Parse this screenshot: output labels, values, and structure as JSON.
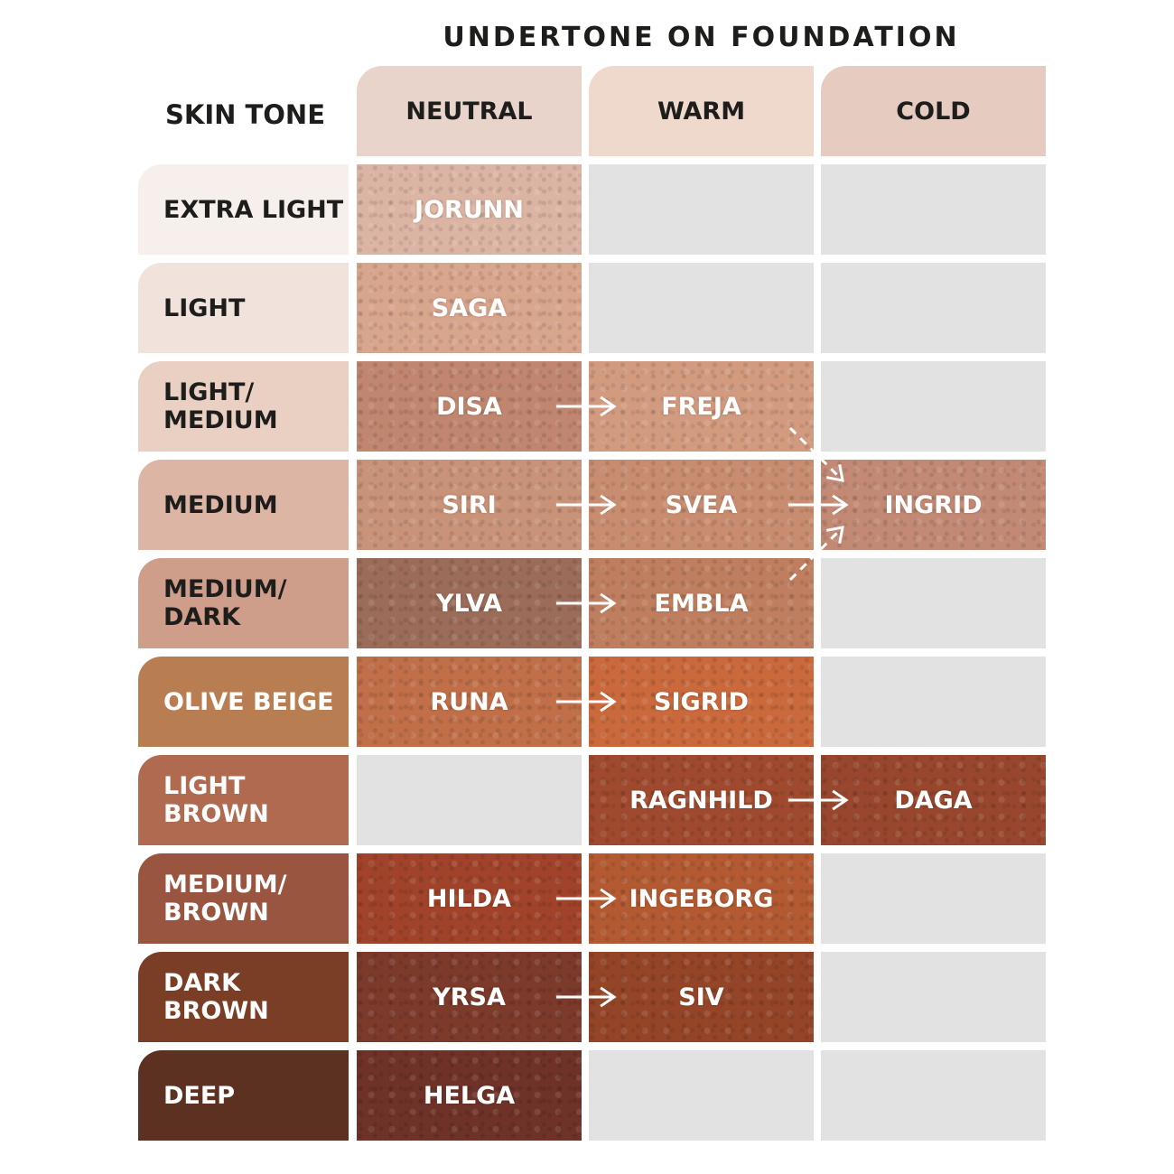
{
  "title": "UNDERTONE ON FOUNDATION",
  "skin_tone_header": "SKIN TONE",
  "columns": [
    {
      "label": "NEUTRAL",
      "color": "#e8d4ca"
    },
    {
      "label": "WARM",
      "color": "#efd9cc"
    },
    {
      "label": "COLD",
      "color": "#e6cbc0"
    }
  ],
  "empty_color": "#e2e2e2",
  "rows": [
    {
      "label": "EXTRA LIGHT",
      "color": "#f6efec",
      "text_color": "#1d1d1b",
      "cells": [
        {
          "name": "JORUNN",
          "color": "#dcb4a3"
        },
        null,
        null
      ]
    },
    {
      "label": "LIGHT",
      "color": "#f1e2dc",
      "text_color": "#1d1d1b",
      "cells": [
        {
          "name": "SAGA",
          "color": "#d8a58d"
        },
        null,
        null
      ]
    },
    {
      "label": "LIGHT/\nMEDIUM",
      "color": "#eacfc3",
      "text_color": "#1d1d1b",
      "cells": [
        {
          "name": "DISA",
          "color": "#c0866f"
        },
        {
          "name": "FREJA",
          "color": "#d29b80"
        },
        null
      ]
    },
    {
      "label": "MEDIUM",
      "color": "#dcb5a5",
      "text_color": "#1d1d1b",
      "cells": [
        {
          "name": "SIRI",
          "color": "#c99379"
        },
        {
          "name": "SVEA",
          "color": "#c88d71"
        },
        {
          "name": "INGRID",
          "color": "#c28a75"
        }
      ]
    },
    {
      "label": "MEDIUM/\nDARK",
      "color": "#cf9e8a",
      "text_color": "#1d1d1b",
      "cells": [
        {
          "name": "YLVA",
          "color": "#9b6c59"
        },
        {
          "name": "EMBLA",
          "color": "#bf7e5f"
        },
        null
      ]
    },
    {
      "label": "OLIVE BEIGE",
      "color": "#b97d52",
      "text_color": "#ffffff",
      "cells": [
        {
          "name": "RUNA",
          "color": "#c06f48"
        },
        {
          "name": "SIGRID",
          "color": "#c9693c"
        },
        null
      ]
    },
    {
      "label": "LIGHT BROWN",
      "color": "#b06a4f",
      "text_color": "#ffffff",
      "cells": [
        null,
        {
          "name": "RAGNHILD",
          "color": "#9f4a2e"
        },
        {
          "name": "DAGA",
          "color": "#98472e"
        }
      ]
    },
    {
      "label": "MEDIUM/\nBROWN",
      "color": "#9a5540",
      "text_color": "#ffffff",
      "cells": [
        {
          "name": "HILDA",
          "color": "#a0432a"
        },
        {
          "name": "INGEBORG",
          "color": "#b35a32"
        },
        null
      ]
    },
    {
      "label": "DARK BROWN",
      "color": "#7a3d26",
      "text_color": "#ffffff",
      "cells": [
        {
          "name": "YRSA",
          "color": "#7c3a2b"
        },
        {
          "name": "SIV",
          "color": "#944528"
        },
        null
      ]
    },
    {
      "label": "DEEP",
      "color": "#5c3121",
      "text_color": "#ffffff",
      "cells": [
        {
          "name": "HELGA",
          "color": "#6e3228"
        },
        null,
        null
      ]
    }
  ],
  "arrows": [
    {
      "from": "DISA",
      "to": "FREJA",
      "style": "solid"
    },
    {
      "from": "SIRI",
      "to": "SVEA",
      "style": "solid"
    },
    {
      "from": "SVEA",
      "to": "INGRID",
      "style": "solid"
    },
    {
      "from": "FREJA",
      "to": "INGRID",
      "style": "dashed"
    },
    {
      "from": "EMBLA",
      "to": "INGRID",
      "style": "dashed"
    },
    {
      "from": "YLVA",
      "to": "EMBLA",
      "style": "solid"
    },
    {
      "from": "RUNA",
      "to": "SIGRID",
      "style": "solid"
    },
    {
      "from": "RAGNHILD",
      "to": "DAGA",
      "style": "solid"
    },
    {
      "from": "HILDA",
      "to": "INGEBORG",
      "style": "solid"
    },
    {
      "from": "YRSA",
      "to": "SIV",
      "style": "solid"
    }
  ]
}
